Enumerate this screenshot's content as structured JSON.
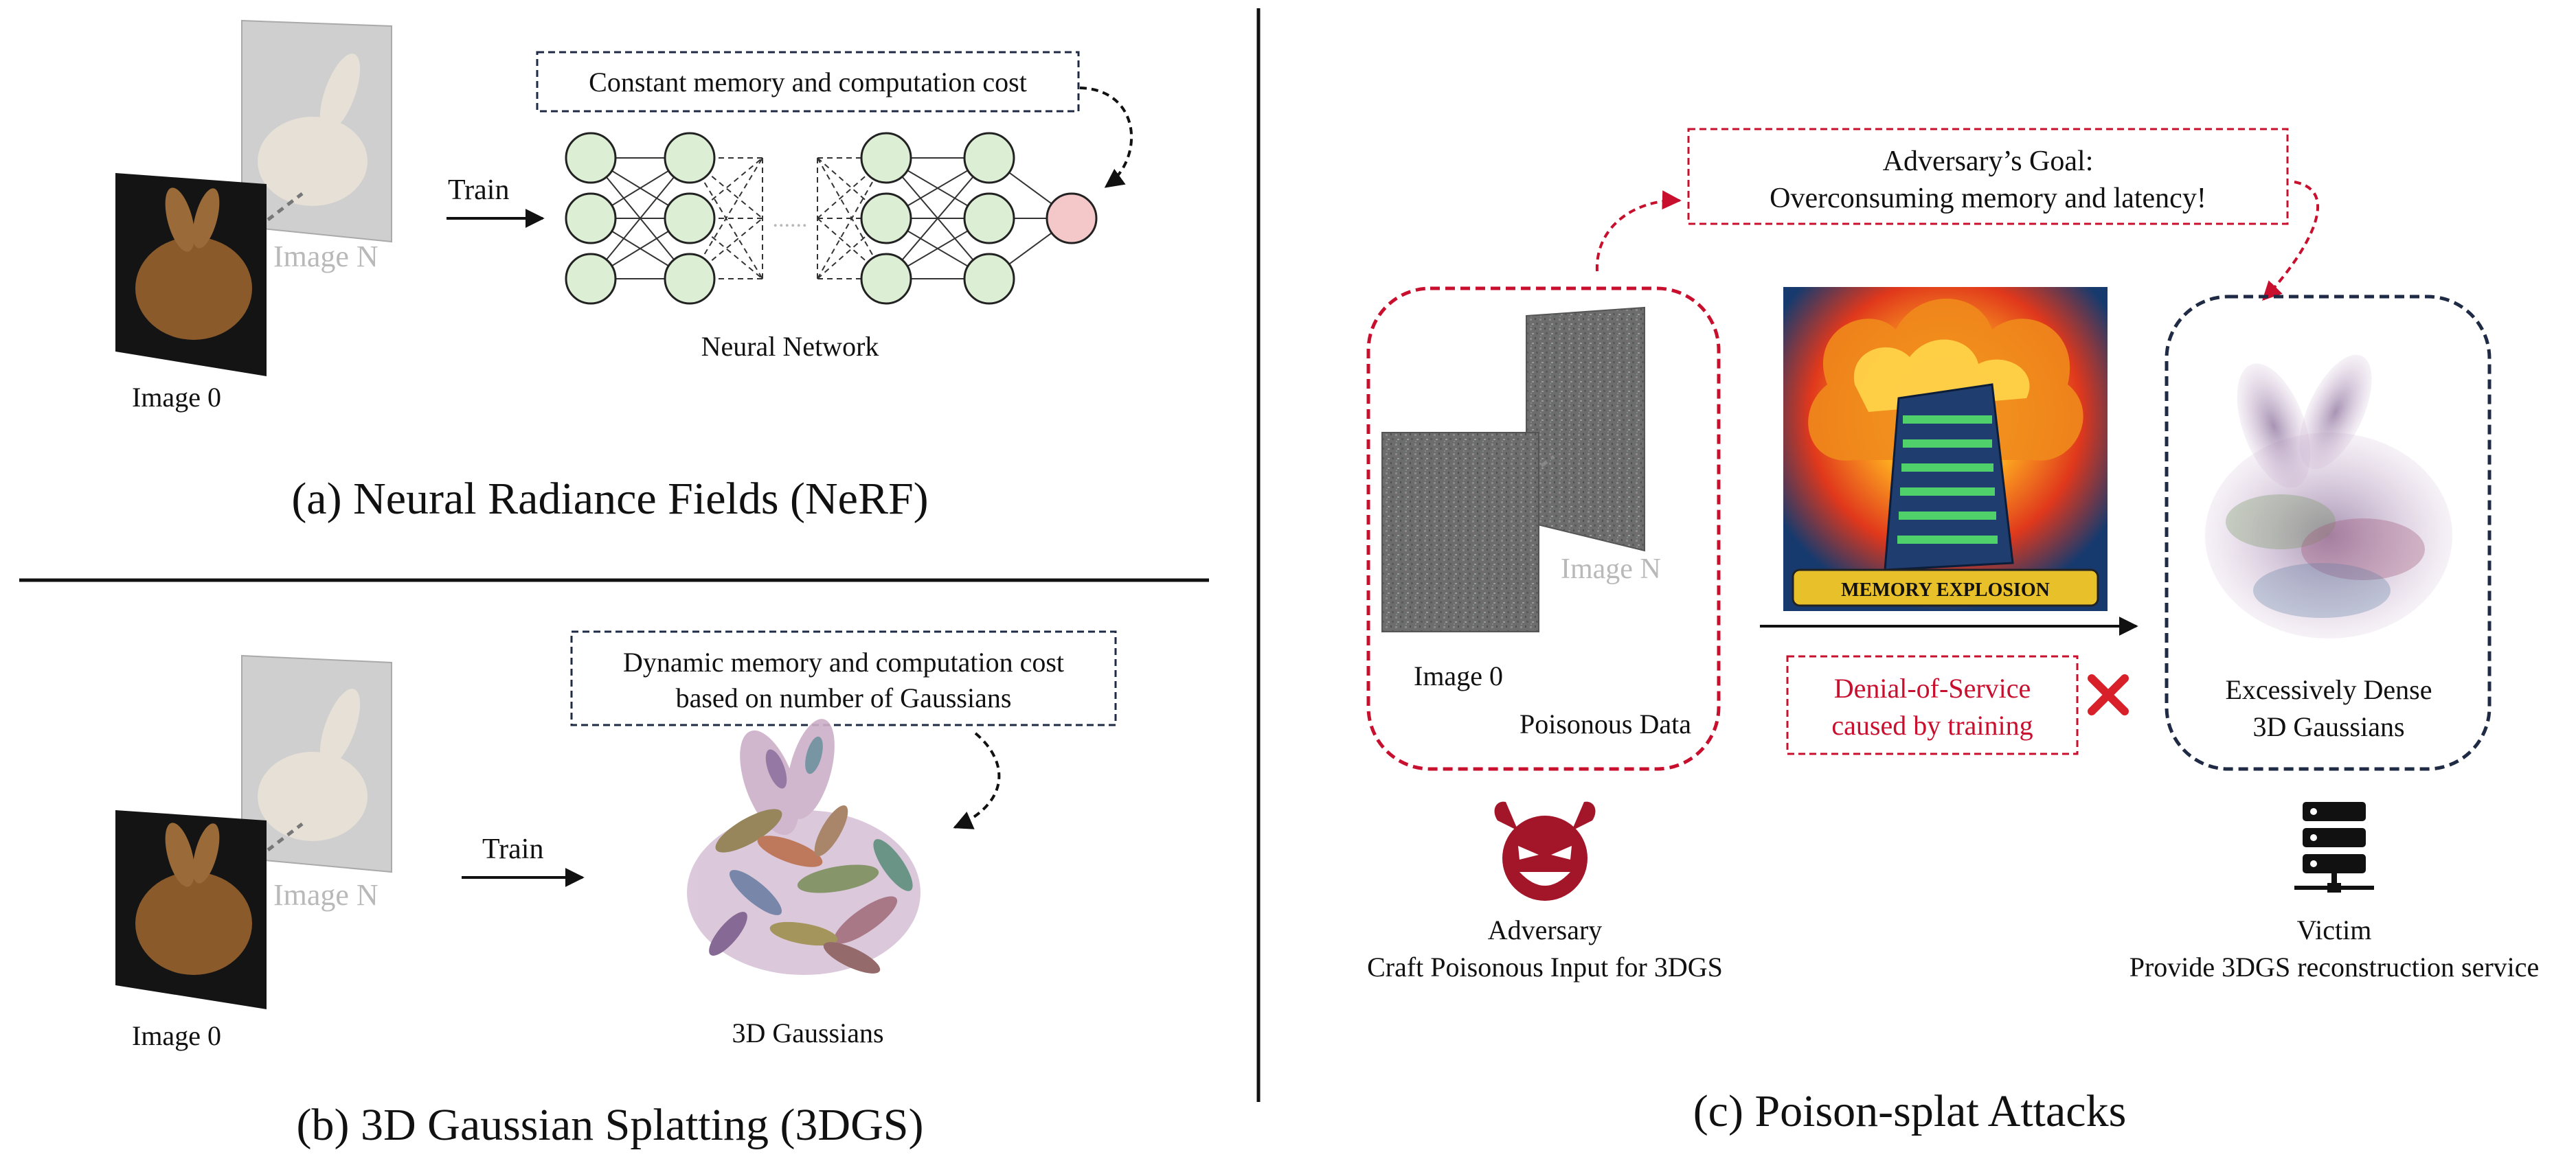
{
  "nerf": {
    "caption": "(a) Neural Radiance Fields (NeRF)",
    "cost_box": "Constant memory and computation cost",
    "train": "Train",
    "network_label": "Neural Network",
    "image_n": "Image N",
    "image_0": "Image 0",
    "ellipsis": "......"
  },
  "gs": {
    "caption": "(b) 3D Gaussian Splatting (3DGS)",
    "cost_box_line1": "Dynamic memory and computation cost",
    "cost_box_line2": "based on number of Gaussians",
    "train": "Train",
    "gaussians_label": "3D Gaussians",
    "image_n": "Image N",
    "image_0": "Image 0"
  },
  "attack": {
    "caption": "(c) Poison-splat Attacks",
    "goal_line1": "Adversary’s Goal:",
    "goal_line2": "Overconsuming memory and latency!",
    "image_n": "Image N",
    "image_0": "Image 0",
    "poison_label": "Poisonous Data",
    "explosion_banner": "MEMORY EXPLOSION",
    "dos_line1": "Denial-of-Service",
    "dos_line2": "caused by training",
    "dense_line1": "Excessively Dense",
    "dense_line2": "3D Gaussians",
    "adversary_title": "Adversary",
    "adversary_desc": "Craft Poisonous Input for 3DGS",
    "victim_title": "Victim",
    "victim_desc": "Provide 3DGS reconstruction service"
  },
  "colors": {
    "neuron_fill": "#dcefd4",
    "output_neuron": "#f4c7c9",
    "accent_red": "#c8102e",
    "navy": "#1f2a44"
  },
  "icons": [
    "devil-icon",
    "server-icon",
    "cross-icon"
  ]
}
